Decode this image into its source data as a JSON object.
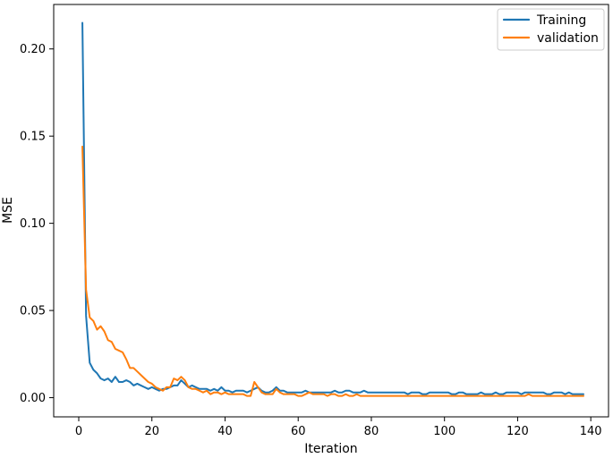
{
  "chart_data": {
    "type": "line",
    "title": "",
    "xlabel": "Iteration",
    "ylabel": "MSE",
    "xlim": [
      -6.85,
      144.85
    ],
    "ylim": [
      -0.011,
      0.2255
    ],
    "x_ticks": [
      0,
      20,
      40,
      60,
      80,
      100,
      120,
      140
    ],
    "x_tick_labels": [
      "0",
      "20",
      "40",
      "60",
      "80",
      "100",
      "120",
      "140"
    ],
    "y_ticks": [
      0.0,
      0.05,
      0.1,
      0.15,
      0.2
    ],
    "y_tick_labels": [
      "0.00",
      "0.05",
      "0.10",
      "0.15",
      "0.20"
    ],
    "grid": false,
    "legend_position": "top-right",
    "series": [
      {
        "name": "Training",
        "color": "#1f77b4",
        "x": [
          1,
          2,
          3,
          4,
          5,
          6,
          7,
          8,
          9,
          10,
          11,
          12,
          13,
          14,
          15,
          16,
          17,
          18,
          19,
          20,
          21,
          22,
          23,
          24,
          25,
          26,
          27,
          28,
          29,
          30,
          31,
          32,
          33,
          34,
          35,
          36,
          37,
          38,
          39,
          40,
          41,
          42,
          43,
          44,
          45,
          46,
          47,
          48,
          49,
          50,
          51,
          52,
          53,
          54,
          55,
          56,
          57,
          58,
          59,
          60,
          61,
          62,
          63,
          64,
          65,
          66,
          67,
          68,
          69,
          70,
          71,
          72,
          73,
          74,
          75,
          76,
          77,
          78,
          79,
          80,
          81,
          82,
          83,
          84,
          85,
          86,
          87,
          88,
          89,
          90,
          91,
          92,
          93,
          94,
          95,
          96,
          97,
          98,
          99,
          100,
          101,
          102,
          103,
          104,
          105,
          106,
          107,
          108,
          109,
          110,
          111,
          112,
          113,
          114,
          115,
          116,
          117,
          118,
          119,
          120,
          121,
          122,
          123,
          124,
          125,
          126,
          127,
          128,
          129,
          130,
          131,
          132,
          133,
          134,
          135,
          136,
          137,
          138
        ],
        "y": [
          0.215,
          0.047,
          0.02,
          0.016,
          0.014,
          0.011,
          0.01,
          0.011,
          0.009,
          0.012,
          0.009,
          0.009,
          0.01,
          0.009,
          0.007,
          0.008,
          0.007,
          0.006,
          0.005,
          0.006,
          0.005,
          0.004,
          0.005,
          0.005,
          0.006,
          0.007,
          0.007,
          0.01,
          0.008,
          0.006,
          0.007,
          0.006,
          0.005,
          0.005,
          0.005,
          0.004,
          0.005,
          0.004,
          0.006,
          0.004,
          0.004,
          0.003,
          0.004,
          0.004,
          0.004,
          0.003,
          0.004,
          0.005,
          0.006,
          0.004,
          0.003,
          0.003,
          0.004,
          0.006,
          0.004,
          0.004,
          0.003,
          0.003,
          0.003,
          0.003,
          0.003,
          0.004,
          0.003,
          0.003,
          0.003,
          0.003,
          0.003,
          0.003,
          0.003,
          0.004,
          0.003,
          0.003,
          0.004,
          0.004,
          0.003,
          0.003,
          0.003,
          0.004,
          0.003,
          0.003,
          0.003,
          0.003,
          0.003,
          0.003,
          0.003,
          0.003,
          0.003,
          0.003,
          0.003,
          0.002,
          0.003,
          0.003,
          0.003,
          0.002,
          0.002,
          0.003,
          0.003,
          0.003,
          0.003,
          0.003,
          0.003,
          0.002,
          0.002,
          0.003,
          0.003,
          0.002,
          0.002,
          0.002,
          0.002,
          0.003,
          0.002,
          0.002,
          0.002,
          0.003,
          0.002,
          0.002,
          0.003,
          0.003,
          0.003,
          0.003,
          0.002,
          0.003,
          0.003,
          0.003,
          0.003,
          0.003,
          0.003,
          0.002,
          0.002,
          0.003,
          0.003,
          0.003,
          0.002,
          0.003,
          0.002,
          0.002,
          0.002,
          0.002
        ]
      },
      {
        "name": "validation",
        "color": "#ff7f0e",
        "x": [
          1,
          2,
          3,
          4,
          5,
          6,
          7,
          8,
          9,
          10,
          11,
          12,
          13,
          14,
          15,
          16,
          17,
          18,
          19,
          20,
          21,
          22,
          23,
          24,
          25,
          26,
          27,
          28,
          29,
          30,
          31,
          32,
          33,
          34,
          35,
          36,
          37,
          38,
          39,
          40,
          41,
          42,
          43,
          44,
          45,
          46,
          47,
          48,
          49,
          50,
          51,
          52,
          53,
          54,
          55,
          56,
          57,
          58,
          59,
          60,
          61,
          62,
          63,
          64,
          65,
          66,
          67,
          68,
          69,
          70,
          71,
          72,
          73,
          74,
          75,
          76,
          77,
          78,
          79,
          80,
          81,
          82,
          83,
          84,
          85,
          86,
          87,
          88,
          89,
          90,
          91,
          92,
          93,
          94,
          95,
          96,
          97,
          98,
          99,
          100,
          101,
          102,
          103,
          104,
          105,
          106,
          107,
          108,
          109,
          110,
          111,
          112,
          113,
          114,
          115,
          116,
          117,
          118,
          119,
          120,
          121,
          122,
          123,
          124,
          125,
          126,
          127,
          128,
          129,
          130,
          131,
          132,
          133,
          134,
          135,
          136,
          137,
          138
        ],
        "y": [
          0.144,
          0.062,
          0.046,
          0.044,
          0.039,
          0.041,
          0.038,
          0.033,
          0.032,
          0.028,
          0.027,
          0.026,
          0.022,
          0.017,
          0.017,
          0.015,
          0.013,
          0.011,
          0.009,
          0.008,
          0.006,
          0.005,
          0.004,
          0.006,
          0.006,
          0.011,
          0.01,
          0.012,
          0.01,
          0.006,
          0.005,
          0.005,
          0.004,
          0.003,
          0.004,
          0.002,
          0.003,
          0.003,
          0.002,
          0.003,
          0.002,
          0.002,
          0.002,
          0.002,
          0.002,
          0.001,
          0.001,
          0.009,
          0.006,
          0.003,
          0.002,
          0.002,
          0.002,
          0.005,
          0.003,
          0.002,
          0.002,
          0.002,
          0.002,
          0.001,
          0.001,
          0.002,
          0.003,
          0.002,
          0.002,
          0.002,
          0.002,
          0.001,
          0.002,
          0.002,
          0.001,
          0.001,
          0.002,
          0.001,
          0.001,
          0.002,
          0.001,
          0.001,
          0.001,
          0.001,
          0.001,
          0.001,
          0.001,
          0.001,
          0.001,
          0.001,
          0.001,
          0.001,
          0.001,
          0.001,
          0.001,
          0.001,
          0.001,
          0.001,
          0.001,
          0.001,
          0.001,
          0.001,
          0.001,
          0.001,
          0.001,
          0.001,
          0.001,
          0.001,
          0.001,
          0.001,
          0.001,
          0.001,
          0.001,
          0.001,
          0.001,
          0.001,
          0.001,
          0.001,
          0.001,
          0.001,
          0.001,
          0.001,
          0.001,
          0.001,
          0.001,
          0.001,
          0.002,
          0.001,
          0.001,
          0.001,
          0.001,
          0.001,
          0.001,
          0.001,
          0.001,
          0.001,
          0.001,
          0.001,
          0.001,
          0.001,
          0.001,
          0.001
        ]
      }
    ]
  }
}
